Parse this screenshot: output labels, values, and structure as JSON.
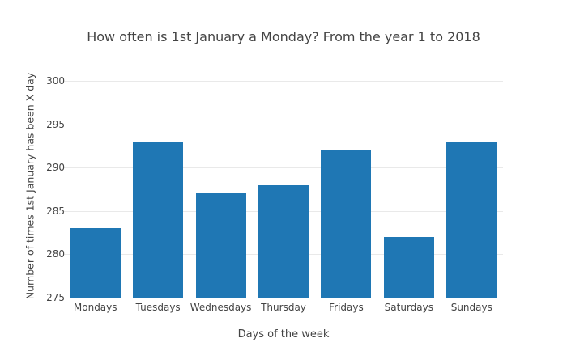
{
  "figure": {
    "background": "#ffffff"
  },
  "chart_data": {
    "type": "bar",
    "title": "How often is 1st January a Monday? From the year 1 to 2018",
    "xlabel": "Days of the week",
    "ylabel": "Number of times 1st January has been X day",
    "categories": [
      "Mondays",
      "Tuesdays",
      "Wednesdays",
      "Thursday",
      "Fridays",
      "Saturdays",
      "Sundays"
    ],
    "values": [
      283,
      293,
      287,
      288,
      292,
      282,
      293
    ],
    "yticks": [
      275,
      280,
      285,
      290,
      295,
      300
    ],
    "ylim": [
      275,
      301.5
    ],
    "bar_color": "#1f77b4",
    "grid_color": "#e9e9e9",
    "text_color": "#444444",
    "grid": "on",
    "legend": "none"
  }
}
